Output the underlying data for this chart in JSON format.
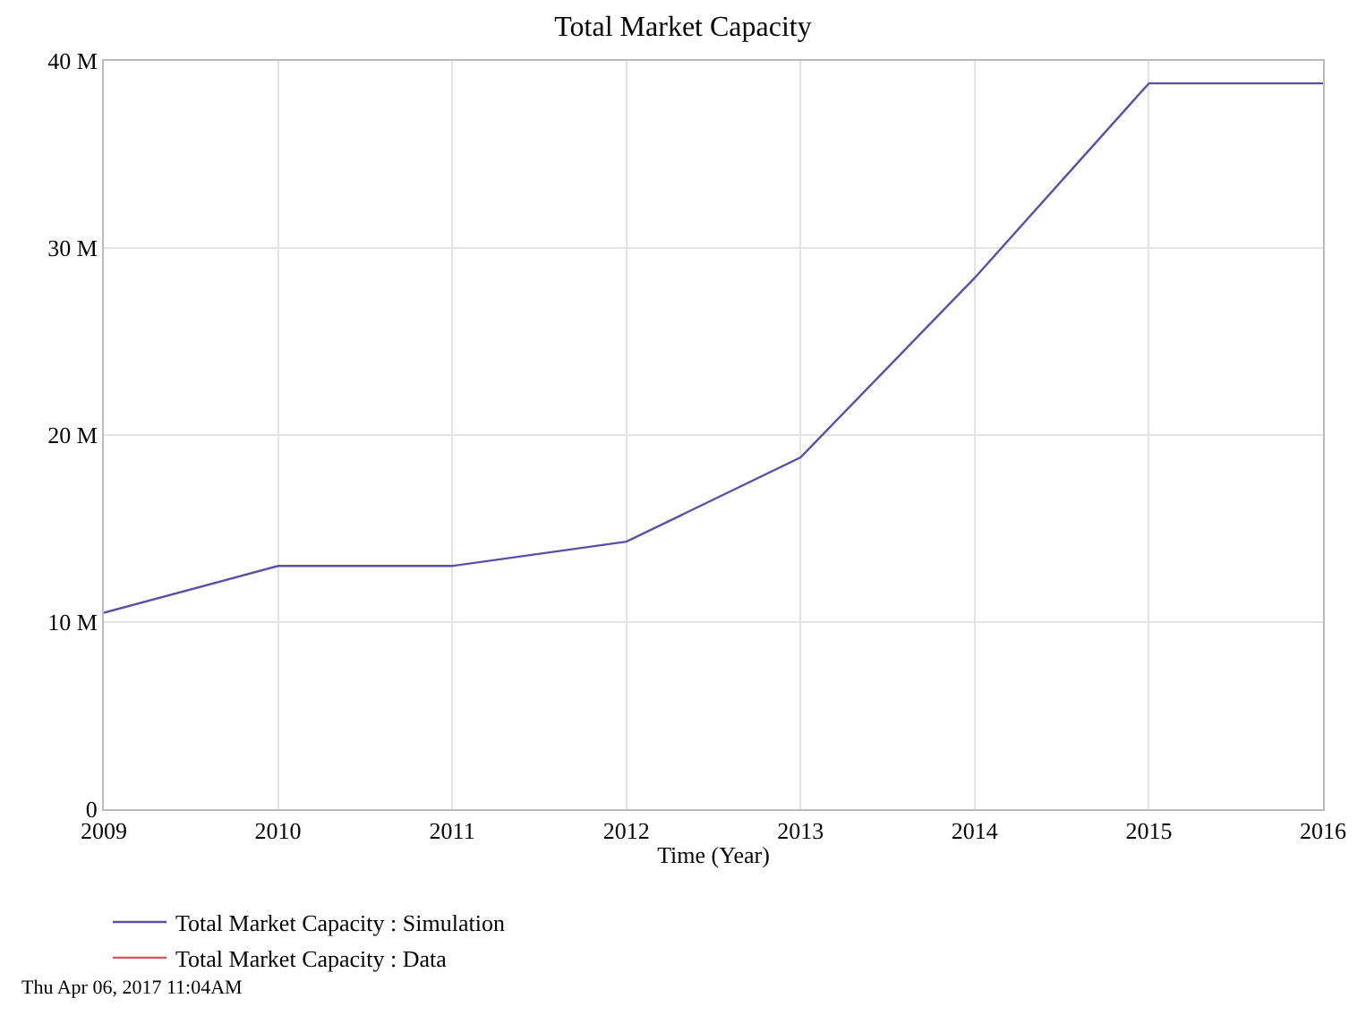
{
  "chart_data": {
    "type": "line",
    "title": "Total Market Capacity",
    "xlabel": "Time (Year)",
    "x": [
      2009,
      2010,
      2011,
      2012,
      2013,
      2014,
      2015,
      2016
    ],
    "series": [
      {
        "name": "Total Market Capacity : Simulation",
        "color": "#5b4fa8",
        "values": [
          10.5,
          13,
          13,
          14.3,
          18.8,
          28.4,
          38.8,
          38.8
        ]
      },
      {
        "name": "Total Market Capacity : Data",
        "color": "#e0505a",
        "values": [
          null,
          null,
          null,
          null,
          null,
          null,
          null,
          null
        ]
      }
    ],
    "xlim": [
      2009,
      2016
    ],
    "xticks": [
      2009,
      2010,
      2011,
      2012,
      2013,
      2014,
      2015,
      2016
    ],
    "ylim": [
      0,
      40
    ],
    "yticks": [
      0,
      {
        "value": 10,
        "label": "10 M"
      },
      {
        "value": 20,
        "label": "20 M"
      },
      {
        "value": 30,
        "label": "30 M"
      },
      {
        "value": 40,
        "label": "40 M"
      }
    ],
    "grid": true,
    "legend": "bottom",
    "marker": "none",
    "line_style": "solid",
    "annotations": [
      "Thu Apr 06, 2017 11:04AM"
    ]
  }
}
